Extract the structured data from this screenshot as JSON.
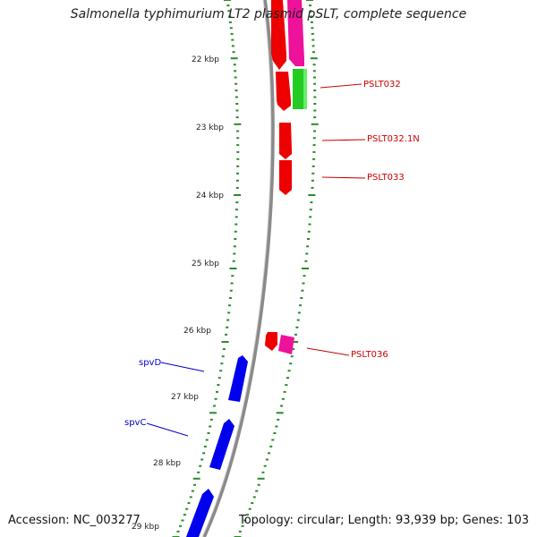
{
  "title": "Salmonella typhimurium LT2 plasmid pSLT, complete sequence",
  "accession": "Accession: NC_003277",
  "topology": "Topology: circular; Length: 93,939 bp; Genes: 103",
  "ticks": [
    "22 kbp",
    "23 kbp",
    "24 kbp",
    "25 kbp",
    "26 kbp",
    "27 kbp",
    "28 kbp",
    "29 kbp"
  ],
  "genes": [
    {
      "name": "PSLT032",
      "color": "#cc0000"
    },
    {
      "name": "PSLT032.1N",
      "color": "#cc0000"
    },
    {
      "name": "PSLT033",
      "color": "#cc0000"
    },
    {
      "name": "PSLT036",
      "color": "#cc0000"
    },
    {
      "name": "spvD",
      "color": "#0000cc"
    },
    {
      "name": "spvC",
      "color": "#0000cc"
    }
  ],
  "colors": {
    "forward_red": "#ee0000",
    "reverse_blue": "#0000ee",
    "pink": "#ee1199",
    "green": "#22cc22",
    "tick_green": "#2a8a2a",
    "backbone": "#888888"
  }
}
